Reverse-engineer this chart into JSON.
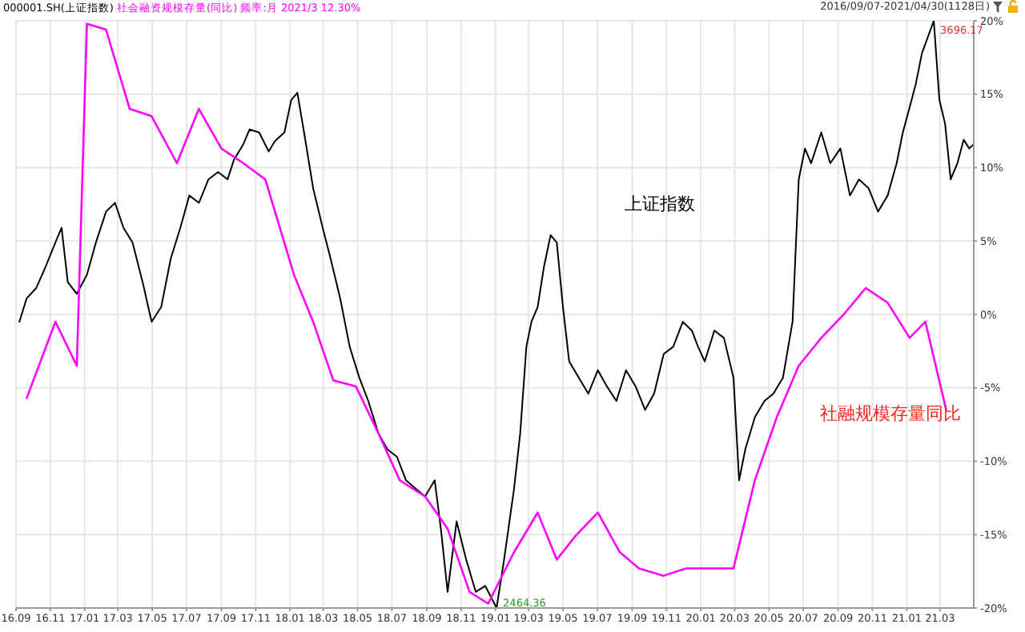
{
  "chart_data": {
    "type": "line",
    "title": "000001.SH(上证指数)",
    "subtitle": "社会融资规模存量(同比) 频率:月 2021/3 12.30%",
    "annotations": [
      "2016/09/07-2021/04/30(1128日)",
      {
        "text": "3696.17",
        "x": "2021-02-18",
        "y": 20
      },
      {
        "text": "2464.36",
        "x": "2019-01-03",
        "y": -20
      }
    ],
    "xlim": [
      "2016-09-01",
      "2021-04-30"
    ],
    "xticks": [
      {
        "value": "2016-09-01",
        "label": "16.09"
      },
      {
        "value": "2016-11-01",
        "label": "16.11"
      },
      {
        "value": "2017-01-01",
        "label": "17.01"
      },
      {
        "value": "2017-03-01",
        "label": "17.03"
      },
      {
        "value": "2017-05-01",
        "label": "17.05"
      },
      {
        "value": "2017-07-01",
        "label": "17.07"
      },
      {
        "value": "2017-09-01",
        "label": "17.09"
      },
      {
        "value": "2017-11-01",
        "label": "17.11"
      },
      {
        "value": "2018-01-01",
        "label": "18.01"
      },
      {
        "value": "2018-03-01",
        "label": "18.03"
      },
      {
        "value": "2018-05-01",
        "label": "18.05"
      },
      {
        "value": "2018-07-01",
        "label": "18.07"
      },
      {
        "value": "2018-09-01",
        "label": "18.09"
      },
      {
        "value": "2018-11-01",
        "label": "18.11"
      },
      {
        "value": "2019-01-01",
        "label": "19.01"
      },
      {
        "value": "2019-03-01",
        "label": "19.03"
      },
      {
        "value": "2019-05-01",
        "label": "19.05"
      },
      {
        "value": "2019-07-01",
        "label": "19.07"
      },
      {
        "value": "2019-09-01",
        "label": "19.09"
      },
      {
        "value": "2019-11-01",
        "label": "19.11"
      },
      {
        "value": "2020-01-01",
        "label": "20.01"
      },
      {
        "value": "2020-03-01",
        "label": "20.03"
      },
      {
        "value": "2020-05-01",
        "label": "20.05"
      },
      {
        "value": "2020-07-01",
        "label": "20.07"
      },
      {
        "value": "2020-09-01",
        "label": "20.09"
      },
      {
        "value": "2020-11-01",
        "label": "20.11"
      },
      {
        "value": "2021-01-01",
        "label": "21.01"
      },
      {
        "value": "2021-03-01",
        "label": "21.03"
      }
    ],
    "ylim": [
      -20,
      20
    ],
    "yticks": [
      {
        "value": -20,
        "label": "-20%"
      },
      {
        "value": -15,
        "label": "-15%"
      },
      {
        "value": -10,
        "label": "-10%"
      },
      {
        "value": -5,
        "label": "-5%"
      },
      {
        "value": 0,
        "label": "0%"
      },
      {
        "value": 5,
        "label": "5%"
      },
      {
        "value": 10,
        "label": "10%"
      },
      {
        "value": 15,
        "label": "15%"
      },
      {
        "value": 20,
        "label": "20%"
      }
    ],
    "grid": true,
    "legend": false,
    "marker": "none",
    "line_style": "solid",
    "series": [
      {
        "name": "上证指数",
        "color": "#000000",
        "x": [
          "2016-09-07",
          "2016-09-20",
          "2016-10-07",
          "2016-10-23",
          "2016-11-10",
          "2016-11-21",
          "2016-12-02",
          "2016-12-18",
          "2017-01-05",
          "2017-01-21",
          "2017-02-08",
          "2017-02-24",
          "2017-03-11",
          "2017-03-27",
          "2017-04-14",
          "2017-04-30",
          "2017-05-17",
          "2017-06-03",
          "2017-06-20",
          "2017-07-06",
          "2017-07-23",
          "2017-08-09",
          "2017-08-26",
          "2017-09-12",
          "2017-09-23",
          "2017-10-10",
          "2017-10-21",
          "2017-11-07",
          "2017-11-24",
          "2017-12-05",
          "2017-12-22",
          "2018-01-03",
          "2018-01-14",
          "2018-01-25",
          "2018-02-11",
          "2018-02-28",
          "2018-03-14",
          "2018-03-31",
          "2018-04-17",
          "2018-05-04",
          "2018-05-20",
          "2018-06-07",
          "2018-06-23",
          "2018-07-10",
          "2018-07-26",
          "2018-08-13",
          "2018-08-29",
          "2018-09-15",
          "2018-09-26",
          "2018-10-08",
          "2018-10-24",
          "2018-11-10",
          "2018-11-27",
          "2018-12-14",
          "2019-01-03",
          "2019-01-16",
          "2019-02-03",
          "2019-02-14",
          "2019-02-25",
          "2019-03-06",
          "2019-03-17",
          "2019-03-28",
          "2019-04-09",
          "2019-04-20",
          "2019-05-01",
          "2019-05-12",
          "2019-05-29",
          "2019-06-15",
          "2019-07-02",
          "2019-07-18",
          "2019-08-04",
          "2019-08-21",
          "2019-09-07",
          "2019-09-24",
          "2019-10-10",
          "2019-10-27",
          "2019-11-13",
          "2019-11-30",
          "2019-12-16",
          "2019-12-27",
          "2020-01-08",
          "2020-01-25",
          "2020-02-11",
          "2020-02-28",
          "2020-03-09",
          "2020-03-20",
          "2020-04-06",
          "2020-04-23",
          "2020-05-09",
          "2020-05-26",
          "2020-06-12",
          "2020-06-23",
          "2020-07-04",
          "2020-07-15",
          "2020-08-02",
          "2020-08-18",
          "2020-09-05",
          "2020-09-22",
          "2020-10-08",
          "2020-10-25",
          "2020-11-11",
          "2020-11-28",
          "2020-12-14",
          "2020-12-25",
          "2021-01-06",
          "2021-01-17",
          "2021-01-28",
          "2021-02-18",
          "2021-02-28",
          "2021-03-10",
          "2021-03-20",
          "2021-04-01",
          "2021-04-12",
          "2021-04-22",
          "2021-04-30"
        ],
        "values": [
          -0.5,
          1.1,
          1.8,
          3.2,
          4.9,
          5.9,
          2.2,
          1.4,
          2.7,
          4.9,
          7.0,
          7.6,
          5.9,
          4.9,
          2.2,
          -0.5,
          0.5,
          3.8,
          5.9,
          8.1,
          7.6,
          9.2,
          9.7,
          9.2,
          10.5,
          11.6,
          12.6,
          12.4,
          11.1,
          11.8,
          12.4,
          14.6,
          15.1,
          12.6,
          8.6,
          5.9,
          3.8,
          1.1,
          -2.2,
          -4.3,
          -5.9,
          -8.1,
          -9.2,
          -9.7,
          -11.3,
          -11.9,
          -12.4,
          -11.3,
          -14.6,
          -18.9,
          -14.1,
          -16.7,
          -18.9,
          -18.5,
          -20,
          -16.8,
          -11.9,
          -8.1,
          -2.2,
          -0.5,
          0.5,
          3.2,
          5.4,
          4.9,
          0.5,
          -3.2,
          -4.3,
          -5.4,
          -3.8,
          -4.9,
          -5.9,
          -3.8,
          -4.9,
          -6.5,
          -5.4,
          -2.7,
          -2.2,
          -0.5,
          -1.1,
          -2.2,
          -3.2,
          -1.1,
          -1.6,
          -4.3,
          -11.3,
          -9.2,
          -7.0,
          -5.9,
          -5.4,
          -4.3,
          -0.5,
          9.2,
          11.3,
          10.3,
          12.4,
          10.3,
          11.3,
          8.1,
          9.2,
          8.6,
          7.0,
          8.1,
          10.3,
          12.4,
          14.1,
          15.7,
          17.8,
          20,
          14.6,
          13.0,
          9.2,
          10.3,
          11.9,
          11.3,
          11.6
        ]
      },
      {
        "name": "社融规模存量同比",
        "color": "#ff00ff",
        "x": [
          "2016-09-20",
          "2016-11-10",
          "2016-12-18",
          "2017-01-05",
          "2017-02-08",
          "2017-03-22",
          "2017-04-30",
          "2017-06-14",
          "2017-07-23",
          "2017-09-01",
          "2017-10-10",
          "2017-11-18",
          "2018-01-08",
          "2018-02-11",
          "2018-03-19",
          "2018-04-28",
          "2018-06-07",
          "2018-07-15",
          "2018-08-29",
          "2018-10-08",
          "2018-11-16",
          "2018-12-19",
          "2019-02-03",
          "2019-03-17",
          "2019-04-20",
          "2019-05-23",
          "2019-07-02",
          "2019-08-10",
          "2019-09-13",
          "2019-10-27",
          "2019-12-06",
          "2020-01-14",
          "2020-02-28",
          "2020-04-06",
          "2020-05-15",
          "2020-06-23",
          "2020-08-02",
          "2020-09-11",
          "2020-10-20",
          "2020-11-28",
          "2021-01-06",
          "2021-02-03",
          "2021-03-12"
        ],
        "values": [
          -5.7,
          -0.5,
          -3.5,
          19.8,
          19.4,
          14.0,
          13.5,
          10.3,
          14.0,
          11.3,
          10.3,
          9.2,
          2.7,
          -0.5,
          -4.5,
          -4.9,
          -8.1,
          -11.3,
          -12.4,
          -14.6,
          -18.9,
          -19.7,
          -16.2,
          -13.5,
          -16.7,
          -15.1,
          -13.5,
          -16.2,
          -17.3,
          -17.8,
          -17.3,
          -17.3,
          -17.3,
          -11.3,
          -7.0,
          -3.5,
          -1.6,
          0,
          1.8,
          0.8,
          -1.6,
          -0.5,
          -6.5
        ]
      }
    ]
  }
}
